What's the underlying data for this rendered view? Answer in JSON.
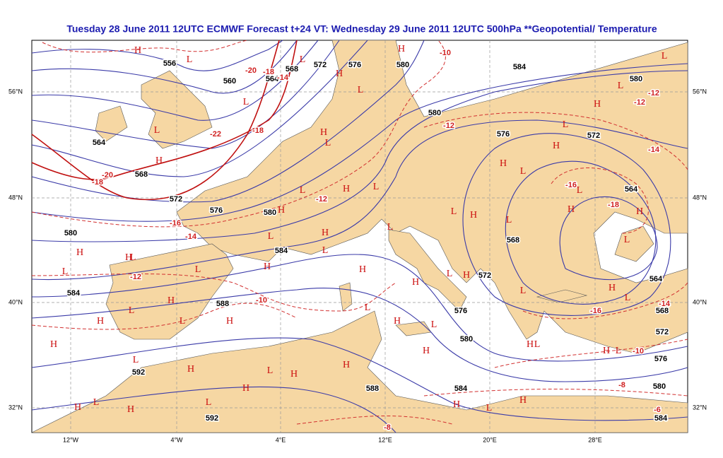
{
  "title": "Tuesday 28 June 2011 12UTC ECMWF  Forecast t+24 VT: Wednesday 29 June 2011 12UTC 500hPa **Geopotential/  Temperature",
  "lat_labels": [
    "56°N",
    "48°N",
    "40°N",
    "32°N"
  ],
  "lon_labels": [
    "12°W",
    "4°W",
    "4°E",
    "12°E",
    "20°E",
    "28°E"
  ],
  "geopotential_labels": [
    "556",
    "560",
    "564",
    "568",
    "572",
    "576",
    "580",
    "584",
    "580",
    "580",
    "576",
    "572",
    "564",
    "568",
    "572",
    "576",
    "580",
    "564",
    "580",
    "584",
    "568",
    "572",
    "584",
    "588",
    "576",
    "564",
    "568",
    "580",
    "572",
    "592",
    "576",
    "588",
    "584",
    "580",
    "592",
    "584"
  ],
  "temperature_labels": [
    "-10",
    "-20",
    "-18",
    "-14",
    "-22",
    "-18",
    "-20",
    "-18",
    "-12",
    "-12",
    "-12",
    "-14",
    "-16",
    "-18",
    "-12",
    "-16",
    "-14",
    "-12",
    "-10",
    "-16",
    "-14",
    "-10",
    "-8",
    "-6",
    "-8"
  ],
  "pressure_centers": [
    "H",
    "L",
    "H",
    "L",
    "L",
    "H",
    "L",
    "L",
    "L",
    "H",
    "L",
    "H",
    "L",
    "H",
    "L",
    "H",
    "H",
    "L",
    "L",
    "H",
    "L",
    "L",
    "L",
    "H",
    "H",
    "H",
    "H",
    "L",
    "H",
    "L",
    "L",
    "L",
    "H",
    "H",
    "L",
    "L",
    "L",
    "H",
    "L",
    "H",
    "L",
    "H",
    "H",
    "L",
    "H",
    "L",
    "H",
    "L",
    "L",
    "H",
    "L",
    "H",
    "H",
    "L",
    "H",
    "H",
    "L",
    "H",
    "L",
    "H",
    "L",
    "H",
    "L",
    "H",
    "H",
    "H",
    "L",
    "H",
    "L",
    "H",
    "H",
    "L",
    "H"
  ]
}
